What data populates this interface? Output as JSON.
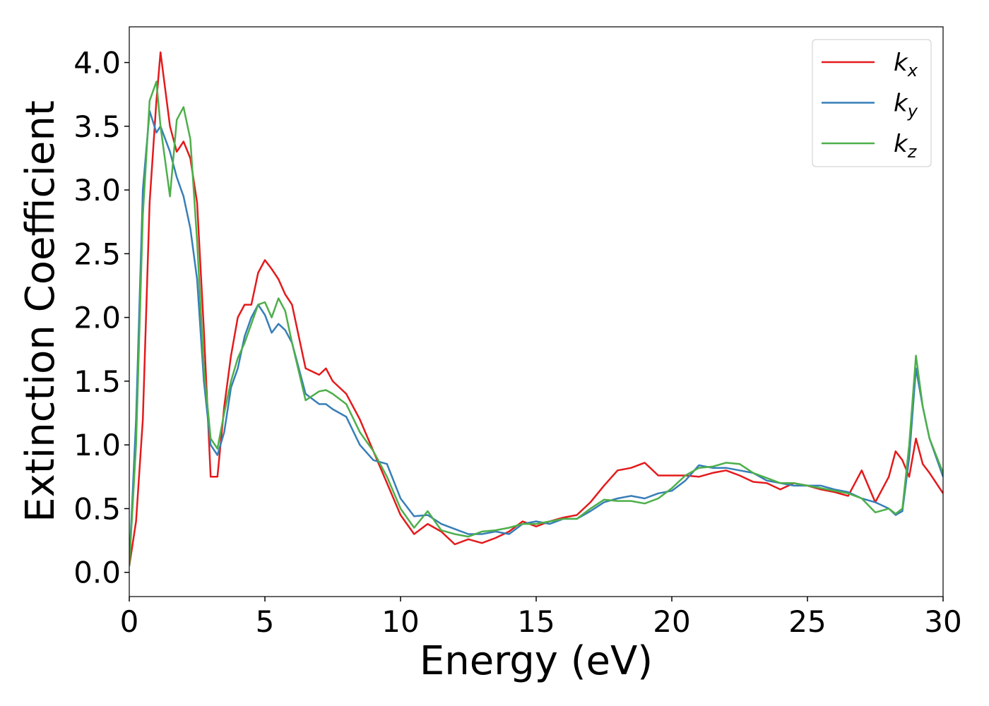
{
  "chart_data": {
    "type": "line",
    "x_label": "Energy (eV)",
    "y_label": "Extinction Coefficient",
    "x": [
      0,
      0.25,
      0.5,
      0.75,
      1,
      1.15,
      1.5,
      1.75,
      2,
      2.25,
      2.5,
      2.75,
      3,
      3.25,
      3.5,
      3.75,
      4,
      4.25,
      4.5,
      4.75,
      5,
      5.25,
      5.5,
      5.75,
      6,
      6.5,
      7,
      7.25,
      7.5,
      8,
      8.5,
      9,
      9.5,
      10,
      10.5,
      11,
      11.5,
      12,
      12.5,
      13,
      13.5,
      14,
      14.5,
      15,
      15.5,
      16,
      16.5,
      17,
      17.5,
      18,
      18.5,
      19,
      19.5,
      20,
      20.5,
      21,
      21.5,
      22,
      22.5,
      23,
      23.5,
      24,
      24.5,
      25,
      25.5,
      26,
      26.5,
      27,
      27.5,
      28,
      28.25,
      28.5,
      28.75,
      29,
      29.25,
      29.5,
      30
    ],
    "series": [
      {
        "name": "k_x",
        "color": "#e41a1c",
        "values": [
          0.05,
          0.4,
          1.2,
          2.9,
          3.7,
          4.08,
          3.5,
          3.3,
          3.38,
          3.25,
          2.9,
          1.9,
          0.75,
          0.75,
          1.3,
          1.7,
          2.0,
          2.1,
          2.1,
          2.35,
          2.45,
          2.38,
          2.3,
          2.18,
          2.1,
          1.6,
          1.55,
          1.6,
          1.5,
          1.4,
          1.2,
          0.95,
          0.7,
          0.45,
          0.3,
          0.38,
          0.32,
          0.22,
          0.26,
          0.23,
          0.27,
          0.32,
          0.4,
          0.36,
          0.4,
          0.43,
          0.45,
          0.55,
          0.68,
          0.8,
          0.82,
          0.86,
          0.76,
          0.76,
          0.76,
          0.75,
          0.78,
          0.8,
          0.76,
          0.71,
          0.7,
          0.65,
          0.7,
          0.68,
          0.65,
          0.63,
          0.6,
          0.8,
          0.55,
          0.75,
          0.95,
          0.88,
          0.75,
          1.05,
          0.85,
          0.78,
          0.62
        ]
      },
      {
        "name": "k_y",
        "color": "#377eb8",
        "values": [
          0.05,
          1.2,
          3.0,
          3.62,
          3.45,
          3.5,
          3.3,
          3.1,
          2.95,
          2.7,
          2.3,
          1.5,
          1.0,
          0.92,
          1.1,
          1.45,
          1.6,
          1.85,
          2.0,
          2.1,
          2.02,
          1.88,
          1.95,
          1.9,
          1.8,
          1.4,
          1.32,
          1.32,
          1.28,
          1.22,
          1.0,
          0.88,
          0.85,
          0.58,
          0.44,
          0.45,
          0.38,
          0.34,
          0.3,
          0.3,
          0.32,
          0.3,
          0.38,
          0.4,
          0.38,
          0.42,
          0.42,
          0.48,
          0.55,
          0.58,
          0.6,
          0.58,
          0.62,
          0.64,
          0.72,
          0.84,
          0.82,
          0.82,
          0.8,
          0.78,
          0.72,
          0.7,
          0.68,
          0.68,
          0.68,
          0.65,
          0.63,
          0.58,
          0.55,
          0.5,
          0.45,
          0.48,
          0.9,
          1.6,
          1.3,
          1.05,
          0.75
        ]
      },
      {
        "name": "k_z",
        "color": "#4daf4a",
        "values": [
          0.05,
          1.0,
          2.8,
          3.7,
          3.85,
          3.5,
          2.95,
          3.55,
          3.65,
          3.4,
          2.6,
          1.6,
          1.05,
          0.97,
          1.25,
          1.5,
          1.68,
          1.8,
          1.95,
          2.1,
          2.12,
          2.0,
          2.15,
          2.05,
          1.8,
          1.35,
          1.42,
          1.43,
          1.4,
          1.32,
          1.1,
          0.95,
          0.75,
          0.5,
          0.35,
          0.48,
          0.33,
          0.3,
          0.28,
          0.32,
          0.33,
          0.35,
          0.38,
          0.38,
          0.4,
          0.42,
          0.42,
          0.5,
          0.57,
          0.56,
          0.56,
          0.54,
          0.58,
          0.66,
          0.76,
          0.82,
          0.83,
          0.86,
          0.85,
          0.78,
          0.74,
          0.7,
          0.7,
          0.68,
          0.66,
          0.64,
          0.62,
          0.58,
          0.47,
          0.5,
          0.46,
          0.5,
          1.0,
          1.7,
          1.3,
          1.05,
          0.78
        ]
      }
    ],
    "xlim": [
      0,
      30
    ],
    "xticks": [
      0,
      5,
      10,
      15,
      20,
      25,
      30
    ],
    "ylim": [
      -0.19,
      4.28
    ],
    "yticks": [
      {
        "value": 0,
        "label": "0.0"
      },
      0.5,
      {
        "value": 1,
        "label": "1.0"
      },
      1.5,
      {
        "value": 2,
        "label": "2.0"
      },
      2.5,
      {
        "value": 3,
        "label": "3.0"
      },
      3.5,
      {
        "value": 4,
        "label": "4.0"
      }
    ],
    "grid": false,
    "legend": "upper right"
  }
}
